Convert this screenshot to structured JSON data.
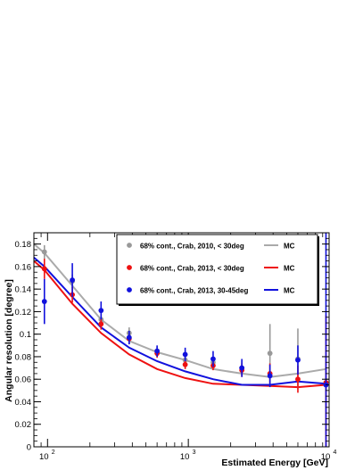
{
  "chart_data": {
    "type": "scatter",
    "xlabel": "Estimated Energy [GeV]",
    "ylabel": "Angular resolution [degree]",
    "x_scale": "log",
    "xlim": [
      80,
      10000
    ],
    "ylim": [
      0,
      0.19
    ],
    "y_ticks": [
      0,
      0.02,
      0.04,
      0.06,
      0.08,
      0.1,
      0.12,
      0.14,
      0.16,
      0.18
    ],
    "y_tick_labels": [
      "0",
      "0.02",
      "0.04",
      "0.06",
      "0.08",
      "0.1",
      "0.12",
      "0.14",
      "0.16",
      "0.18"
    ],
    "x_tick_labels": [
      {
        "value": 100,
        "base": "10",
        "exp": "2"
      },
      {
        "value": 1000,
        "base": "10",
        "exp": "3"
      },
      {
        "value": 10000,
        "base": "10",
        "exp": "4"
      }
    ],
    "grid": false,
    "legend_position": "top-right",
    "series": [
      {
        "name": "68% cont., Crab, 2010, < 30deg",
        "kind": "points",
        "color": "#999999",
        "x": [
          95,
          150,
          240,
          380,
          600,
          950,
          1500,
          2400,
          3800,
          6000,
          9500
        ],
        "y": [
          0.173,
          0.147,
          0.113,
          0.101,
          0.085,
          0.077,
          0.075,
          0.07,
          0.083,
          0.078,
          0.055
        ],
        "yerr": [
          0.006,
          0.006,
          0.005,
          0.005,
          0.004,
          0.004,
          0.004,
          0.006,
          0.026,
          0.027,
          0.02
        ]
      },
      {
        "name": "68% cont., Crab, 2013, < 30deg",
        "kind": "points",
        "color": "#ee1111",
        "x": [
          95,
          150,
          240,
          380,
          600,
          950,
          1500,
          2400,
          3800,
          6000,
          9500
        ],
        "y": [
          0.158,
          0.135,
          0.109,
          0.096,
          0.083,
          0.073,
          0.072,
          0.068,
          0.065,
          0.06,
          0.057
        ],
        "yerr": [
          0.009,
          0.007,
          0.005,
          0.005,
          0.004,
          0.004,
          0.004,
          0.006,
          0.009,
          0.012,
          0.06
        ]
      },
      {
        "name": "68% cont., Crab, 2013, 30-45deg",
        "kind": "points",
        "color": "#1111dd",
        "x": [
          95,
          150,
          240,
          380,
          600,
          950,
          1500,
          2400,
          3800,
          6000,
          9500
        ],
        "y": [
          0.129,
          0.148,
          0.121,
          0.097,
          0.085,
          0.082,
          0.078,
          0.07,
          0.063,
          0.077,
          0.055
        ],
        "yerr": [
          0.02,
          0.015,
          0.008,
          0.006,
          0.005,
          0.006,
          0.007,
          0.008,
          0.01,
          0.013,
          0.14
        ]
      },
      {
        "name": "MC",
        "kind": "line",
        "color": "#aaaaaa",
        "x": [
          80,
          95,
          150,
          240,
          380,
          600,
          950,
          1500,
          2400,
          3800,
          6000,
          9500
        ],
        "y": [
          0.18,
          0.172,
          0.143,
          0.113,
          0.094,
          0.084,
          0.077,
          0.069,
          0.065,
          0.062,
          0.065,
          0.069
        ]
      },
      {
        "name": "MC",
        "kind": "line",
        "color": "#ee1111",
        "x": [
          80,
          95,
          150,
          240,
          380,
          600,
          950,
          1500,
          2400,
          3800,
          6000,
          9500
        ],
        "y": [
          0.165,
          0.157,
          0.127,
          0.101,
          0.082,
          0.069,
          0.061,
          0.056,
          0.055,
          0.054,
          0.053,
          0.055
        ]
      },
      {
        "name": "MC",
        "kind": "line",
        "color": "#1111dd",
        "x": [
          80,
          95,
          150,
          240,
          380,
          600,
          950,
          1500,
          2400,
          3800,
          6000,
          9500
        ],
        "y": [
          0.168,
          0.16,
          0.133,
          0.106,
          0.088,
          0.076,
          0.067,
          0.06,
          0.055,
          0.055,
          0.058,
          0.056
        ]
      }
    ]
  }
}
